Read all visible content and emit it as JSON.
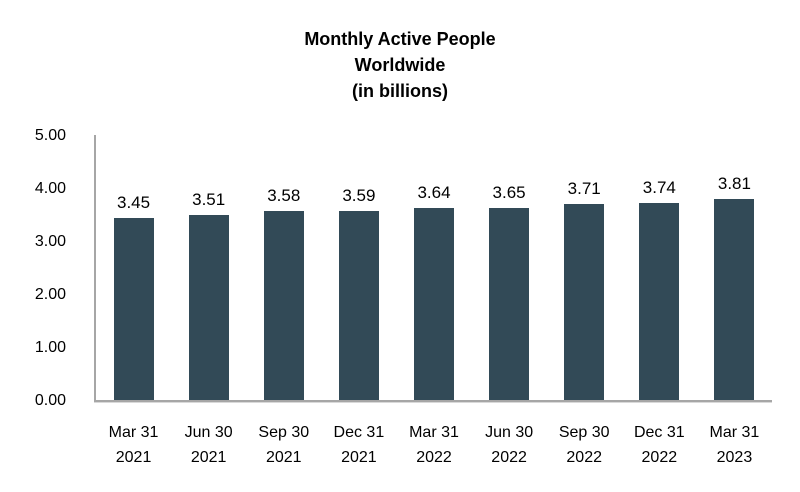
{
  "chart_data": {
    "type": "bar",
    "title": "Monthly Active People Worldwide (in billions)",
    "title_lines": [
      "Monthly Active People",
      "Worldwide",
      "(in billions)"
    ],
    "categories": [
      "Mar 31 2021",
      "Jun 30 2021",
      "Sep 30 2021",
      "Dec 31 2021",
      "Mar 31 2022",
      "Jun 30 2022",
      "Sep 30 2022",
      "Dec 31 2022",
      "Mar 31 2023"
    ],
    "category_lines": [
      [
        "Mar 31",
        "2021"
      ],
      [
        "Jun 30",
        "2021"
      ],
      [
        "Sep 30",
        "2021"
      ],
      [
        "Dec 31",
        "2021"
      ],
      [
        "Mar 31",
        "2022"
      ],
      [
        "Jun 30",
        "2022"
      ],
      [
        "Sep 30",
        "2022"
      ],
      [
        "Dec 31",
        "2022"
      ],
      [
        "Mar 31",
        "2023"
      ]
    ],
    "values": [
      3.45,
      3.51,
      3.58,
      3.59,
      3.64,
      3.65,
      3.71,
      3.74,
      3.81
    ],
    "value_labels": [
      "3.45",
      "3.51",
      "3.58",
      "3.59",
      "3.64",
      "3.65",
      "3.71",
      "3.74",
      "3.81"
    ],
    "xlabel": "",
    "ylabel": "",
    "ylim": [
      0,
      5
    ],
    "ytick_labels": [
      "5.00",
      "4.00",
      "3.00",
      "2.00",
      "1.00",
      "0.00"
    ],
    "grid": false,
    "legend": false,
    "bar_color": "#324a57",
    "axis_color": "#a6a6a6",
    "text_color": "#000000",
    "background_color": "#ffffff"
  }
}
